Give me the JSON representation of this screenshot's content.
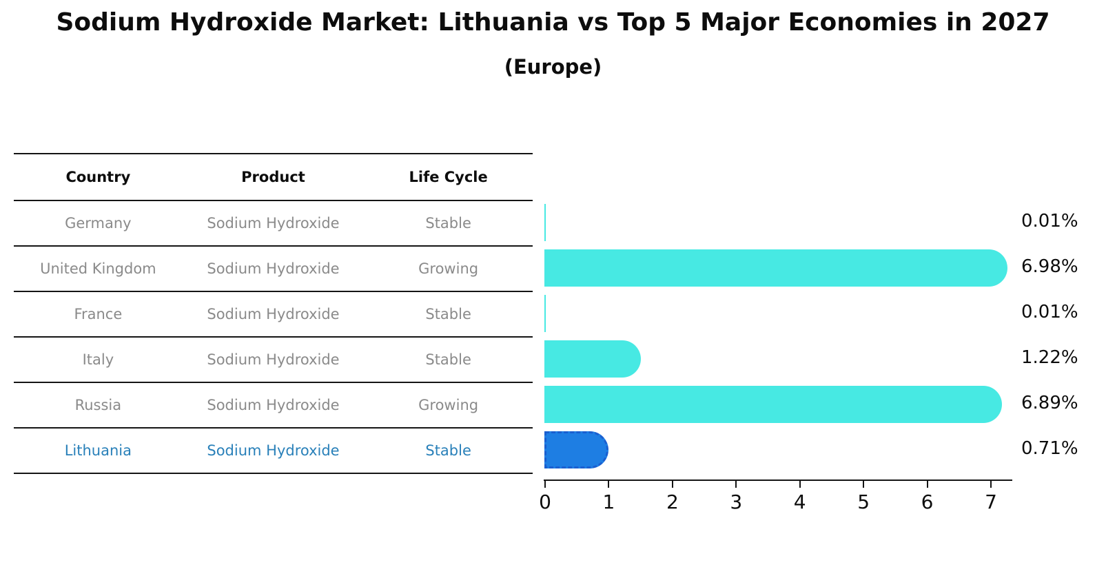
{
  "header": {
    "title": "Sodium Hydroxide Market: Lithuania vs Top 5 Major Economies in 2027",
    "subtitle": "(Europe)"
  },
  "table": {
    "columns": [
      "Country",
      "Product",
      "Life Cycle"
    ],
    "rows": [
      {
        "country": "Germany",
        "product": "Sodium Hydroxide",
        "life_cycle": "Stable",
        "highlight": false
      },
      {
        "country": "United Kingdom",
        "product": "Sodium Hydroxide",
        "life_cycle": "Growing",
        "highlight": false
      },
      {
        "country": "France",
        "product": "Sodium Hydroxide",
        "life_cycle": "Stable",
        "highlight": false
      },
      {
        "country": "Italy",
        "product": "Sodium Hydroxide",
        "life_cycle": "Stable",
        "highlight": false
      },
      {
        "country": "Russia",
        "product": "Sodium Hydroxide",
        "life_cycle": "Growing",
        "highlight": false
      },
      {
        "country": "Lithuania",
        "product": "Sodium Hydroxide",
        "life_cycle": "Stable",
        "highlight": true
      }
    ]
  },
  "chart_data": {
    "type": "bar",
    "orientation": "horizontal",
    "title": "Sodium Hydroxide Market: Lithuania vs Top 5 Major Economies in 2027",
    "subtitle": "(Europe)",
    "categories": [
      "Germany",
      "United Kingdom",
      "France",
      "Italy",
      "Russia",
      "Lithuania"
    ],
    "values": [
      0.01,
      6.98,
      0.01,
      1.22,
      6.89,
      0.71
    ],
    "value_labels": [
      "0.01%",
      "6.98%",
      "0.01%",
      "1.22%",
      "6.89%",
      "0.71%"
    ],
    "unit": "%",
    "x_ticks": [
      0,
      1,
      2,
      3,
      4,
      5,
      6,
      7
    ],
    "xlim": [
      0,
      7.35
    ],
    "grid": false,
    "legend": "none",
    "highlight_category": "Lithuania",
    "colors": {
      "bar": "#47E9E3",
      "highlight_bar": "#1E7EE3",
      "highlight_border": "#1A5FD0",
      "highlight_text": "#2980B9",
      "row_text": "#8A8A8A",
      "axis": "#141414",
      "label_text": "#0d0d0d"
    }
  }
}
